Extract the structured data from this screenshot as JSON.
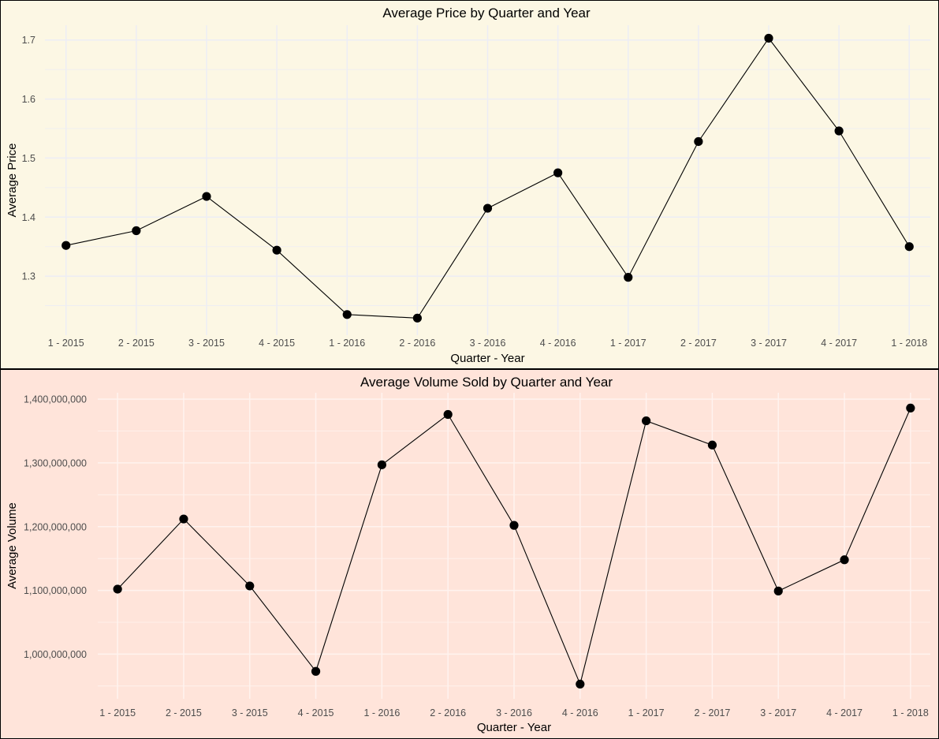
{
  "chart_data": [
    {
      "type": "line",
      "title": "Average Price by Quarter and Year",
      "xlabel": "Quarter - Year",
      "ylabel": "Average Price",
      "categories": [
        "1 - 2015",
        "2 - 2015",
        "3 - 2015",
        "4 - 2015",
        "1 - 2016",
        "2 - 2016",
        "3 - 2016",
        "4 - 2016",
        "1 - 2017",
        "2 - 2017",
        "3 - 2017",
        "4 - 2017",
        "1 - 2018"
      ],
      "values": [
        1.352,
        1.377,
        1.435,
        1.344,
        1.235,
        1.229,
        1.415,
        1.475,
        1.298,
        1.528,
        1.703,
        1.546,
        1.35
      ],
      "ylim": [
        1.2,
        1.725
      ],
      "yticks": [
        1.3,
        1.4,
        1.5,
        1.6,
        1.7
      ],
      "ytick_labels": [
        "1.3",
        "1.4",
        "1.5",
        "1.6",
        "1.7"
      ],
      "grid": true,
      "background_color": "#FCF7E4",
      "grid_color": "#EDEDF5",
      "line_color": "#000000",
      "point_color": "#000000"
    },
    {
      "type": "line",
      "title": "Average Volume Sold by Quarter and Year",
      "xlabel": "Quarter - Year",
      "ylabel": "Average Volume",
      "categories": [
        "1 - 2015",
        "2 - 2015",
        "3 - 2015",
        "4 - 2015",
        "1 - 2016",
        "2 - 2016",
        "3 - 2016",
        "4 - 2016",
        "1 - 2017",
        "2 - 2017",
        "3 - 2017",
        "4 - 2017",
        "1 - 2018"
      ],
      "values": [
        1102000000,
        1212000000,
        1107000000,
        973000000,
        1297000000,
        1376000000,
        1202000000,
        953000000,
        1366000000,
        1328000000,
        1099000000,
        1148000000,
        1386000000
      ],
      "ylim": [
        930000000,
        1410000000
      ],
      "yticks": [
        1000000000,
        1100000000,
        1200000000,
        1300000000,
        1400000000
      ],
      "ytick_labels": [
        "1,000,000,000",
        "1,100,000,000",
        "1,200,000,000",
        "1,300,000,000",
        "1,400,000,000"
      ],
      "grid": true,
      "background_color": "#FFE4DA",
      "grid_color": "#FFF3EF",
      "line_color": "#000000",
      "point_color": "#000000"
    }
  ]
}
